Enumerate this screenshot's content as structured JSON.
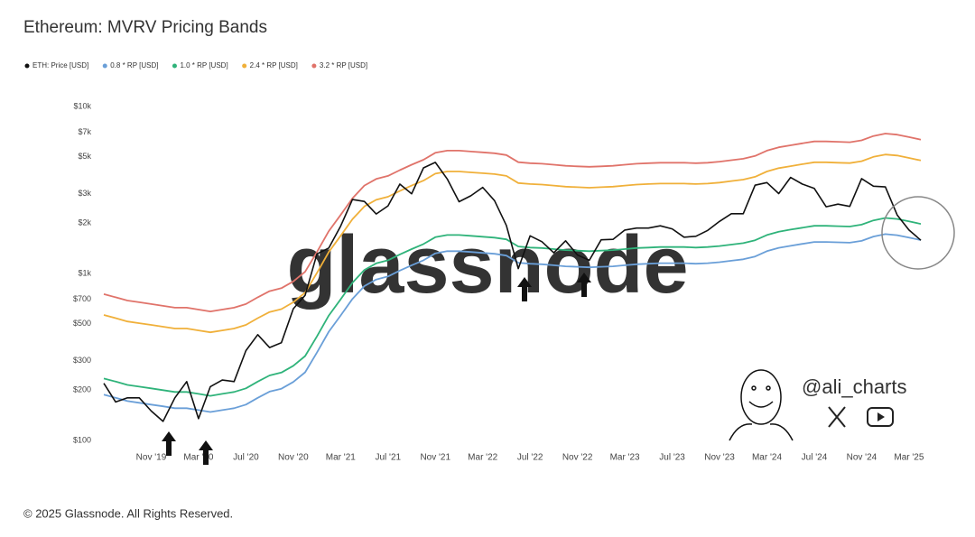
{
  "watermark": "glassnode",
  "handle": "@ali_charts",
  "footer": "© 2025 Glassnode. All Rights Reserved.",
  "chart_data": {
    "type": "line",
    "title": "Ethereum: MVRV Pricing Bands",
    "log_scale": true,
    "grid": false,
    "legend": "top-left",
    "ylim": [
      100,
      10000
    ],
    "yticks": [
      {
        "value": 100,
        "label": "$100"
      },
      {
        "value": 200,
        "label": "$200"
      },
      {
        "value": 300,
        "label": "$300"
      },
      {
        "value": 500,
        "label": "$500"
      },
      {
        "value": 700,
        "label": "$700"
      },
      {
        "value": 1000,
        "label": "$1k"
      },
      {
        "value": 2000,
        "label": "$2k"
      },
      {
        "value": 3000,
        "label": "$3k"
      },
      {
        "value": 5000,
        "label": "$5k"
      },
      {
        "value": 7000,
        "label": "$7k"
      },
      {
        "value": 10000,
        "label": "$10k"
      }
    ],
    "categories": [
      null,
      null,
      null,
      null,
      "Nov '19",
      null,
      null,
      null,
      "Mar '20",
      null,
      null,
      null,
      "Jul '20",
      null,
      null,
      null,
      "Nov '20",
      null,
      null,
      null,
      "Mar '21",
      null,
      null,
      null,
      "Jul '21",
      null,
      null,
      null,
      "Nov '21",
      null,
      null,
      null,
      "Mar '22",
      null,
      null,
      null,
      "Jul '22",
      null,
      null,
      null,
      "Nov '22",
      null,
      null,
      null,
      "Mar '23",
      null,
      null,
      null,
      "Jul '23",
      null,
      null,
      null,
      "Nov '23",
      null,
      null,
      null,
      "Mar '24",
      null,
      null,
      null,
      "Jul '24",
      null,
      null,
      null,
      "Nov '24",
      null,
      null,
      null,
      "Mar '25",
      null
    ],
    "series": [
      {
        "name": "ETH: Price [USD]",
        "color": "#111111",
        "width": 1.6,
        "values": [
          220,
          170,
          180,
          180,
          150,
          130,
          180,
          225,
          135,
          210,
          230,
          225,
          345,
          430,
          360,
          385,
          615,
          740,
          1310,
          1420,
          1920,
          2770,
          2700,
          2270,
          2540,
          3430,
          3000,
          4290,
          4630,
          3680,
          2690,
          2920,
          3280,
          2730,
          1940,
          1070,
          1680,
          1550,
          1330,
          1570,
          1290,
          1200,
          1590,
          1600,
          1820,
          1870,
          1870,
          1930,
          1850,
          1650,
          1670,
          1810,
          2050,
          2280,
          2280,
          3380,
          3500,
          3010,
          3760,
          3430,
          3230,
          2510,
          2600,
          2520,
          3700,
          3330,
          3300,
          2240,
          1820,
          1580
        ]
      },
      {
        "name": "0.8 * RP [USD]",
        "color": "#6a9fd8",
        "width": 1.8,
        "values": [
          188,
          180,
          172,
          168,
          164,
          160,
          156,
          156,
          152,
          148,
          152,
          156,
          164,
          180,
          196,
          204,
          224,
          256,
          336,
          448,
          560,
          704,
          840,
          920,
          960,
          1040,
          1120,
          1200,
          1320,
          1360,
          1360,
          1344,
          1328,
          1312,
          1280,
          1160,
          1144,
          1136,
          1120,
          1104,
          1096,
          1088,
          1096,
          1104,
          1120,
          1136,
          1144,
          1152,
          1152,
          1152,
          1144,
          1152,
          1168,
          1192,
          1216,
          1264,
          1360,
          1424,
          1464,
          1504,
          1544,
          1544,
          1536,
          1528,
          1568,
          1664,
          1720,
          1696,
          1640,
          1584
        ]
      },
      {
        "name": "1.0 * RP [USD]",
        "color": "#2fb37a",
        "width": 1.8,
        "values": [
          235,
          225,
          215,
          210,
          205,
          200,
          195,
          195,
          190,
          185,
          190,
          195,
          205,
          225,
          245,
          255,
          280,
          320,
          420,
          560,
          700,
          880,
          1050,
          1150,
          1200,
          1300,
          1400,
          1500,
          1650,
          1700,
          1700,
          1680,
          1660,
          1640,
          1600,
          1450,
          1430,
          1420,
          1400,
          1380,
          1370,
          1360,
          1370,
          1380,
          1400,
          1420,
          1430,
          1440,
          1440,
          1440,
          1430,
          1440,
          1460,
          1490,
          1520,
          1580,
          1700,
          1780,
          1830,
          1880,
          1930,
          1930,
          1920,
          1910,
          1960,
          2080,
          2150,
          2120,
          2050,
          1980
        ]
      },
      {
        "name": "2.4 * RP [USD]",
        "color": "#f0b03a",
        "width": 1.8,
        "values": [
          564,
          540,
          516,
          504,
          492,
          480,
          468,
          468,
          456,
          444,
          456,
          468,
          492,
          540,
          588,
          612,
          672,
          768,
          1008,
          1344,
          1680,
          2112,
          2520,
          2760,
          2880,
          3120,
          3360,
          3600,
          3960,
          4080,
          4080,
          4032,
          3984,
          3936,
          3840,
          3480,
          3432,
          3408,
          3360,
          3312,
          3288,
          3264,
          3288,
          3312,
          3360,
          3408,
          3432,
          3456,
          3456,
          3456,
          3432,
          3456,
          3504,
          3576,
          3648,
          3792,
          4080,
          4272,
          4392,
          4512,
          4632,
          4632,
          4608,
          4584,
          4704,
          4992,
          5160,
          5088,
          4920,
          4752
        ]
      },
      {
        "name": "3.2 * RP [USD]",
        "color": "#e0736a",
        "width": 1.8,
        "values": [
          752,
          720,
          688,
          672,
          656,
          640,
          624,
          624,
          608,
          592,
          608,
          624,
          656,
          720,
          784,
          816,
          896,
          1024,
          1344,
          1792,
          2240,
          2816,
          3360,
          3680,
          3840,
          4160,
          4480,
          4800,
          5280,
          5440,
          5440,
          5376,
          5312,
          5248,
          5120,
          4640,
          4576,
          4544,
          4480,
          4416,
          4384,
          4352,
          4384,
          4416,
          4480,
          4544,
          4576,
          4608,
          4608,
          4608,
          4576,
          4608,
          4672,
          4768,
          4864,
          5056,
          5440,
          5696,
          5856,
          6016,
          6176,
          6176,
          6144,
          6112,
          6272,
          6656,
          6880,
          6784,
          6560,
          6336
        ]
      }
    ]
  }
}
